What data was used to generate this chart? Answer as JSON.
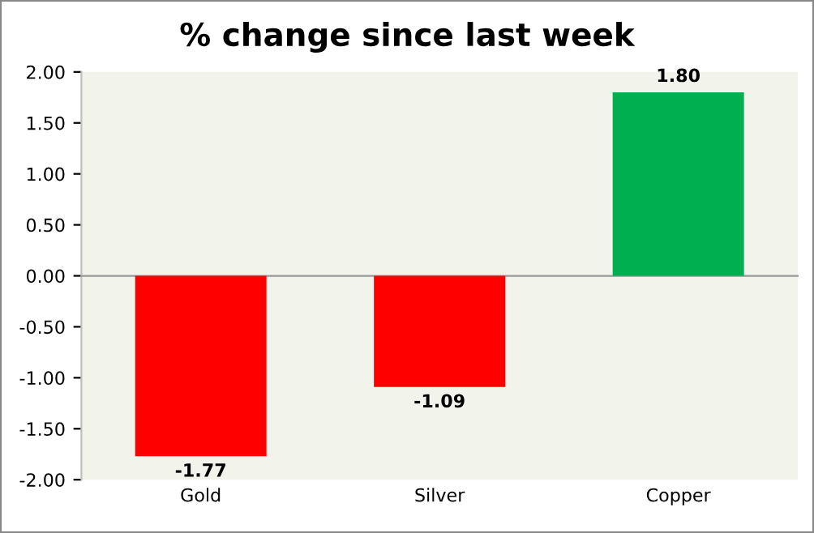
{
  "chart_data": {
    "type": "bar",
    "title": "% change since last week",
    "categories": [
      "Gold",
      "Silver",
      "Copper"
    ],
    "values": [
      -1.77,
      -1.09,
      1.8
    ],
    "colors": [
      "#ff0000",
      "#ff0000",
      "#00b050"
    ],
    "value_labels": [
      "-1.77",
      "-1.09",
      "1.80"
    ],
    "ylim": [
      -2,
      2
    ],
    "yticks": [
      {
        "value": -2,
        "label": "-2.00"
      },
      {
        "value": -1.5,
        "label": "-1.50"
      },
      {
        "value": -1,
        "label": "-1.00"
      },
      {
        "value": -0.5,
        "label": "-0.50"
      },
      {
        "value": 0,
        "label": "0.00"
      },
      {
        "value": 0.5,
        "label": "0.50"
      },
      {
        "value": 1,
        "label": "1.00"
      },
      {
        "value": 1.5,
        "label": "1.50"
      },
      {
        "value": 2,
        "label": "2.00"
      }
    ],
    "legend": false
  }
}
